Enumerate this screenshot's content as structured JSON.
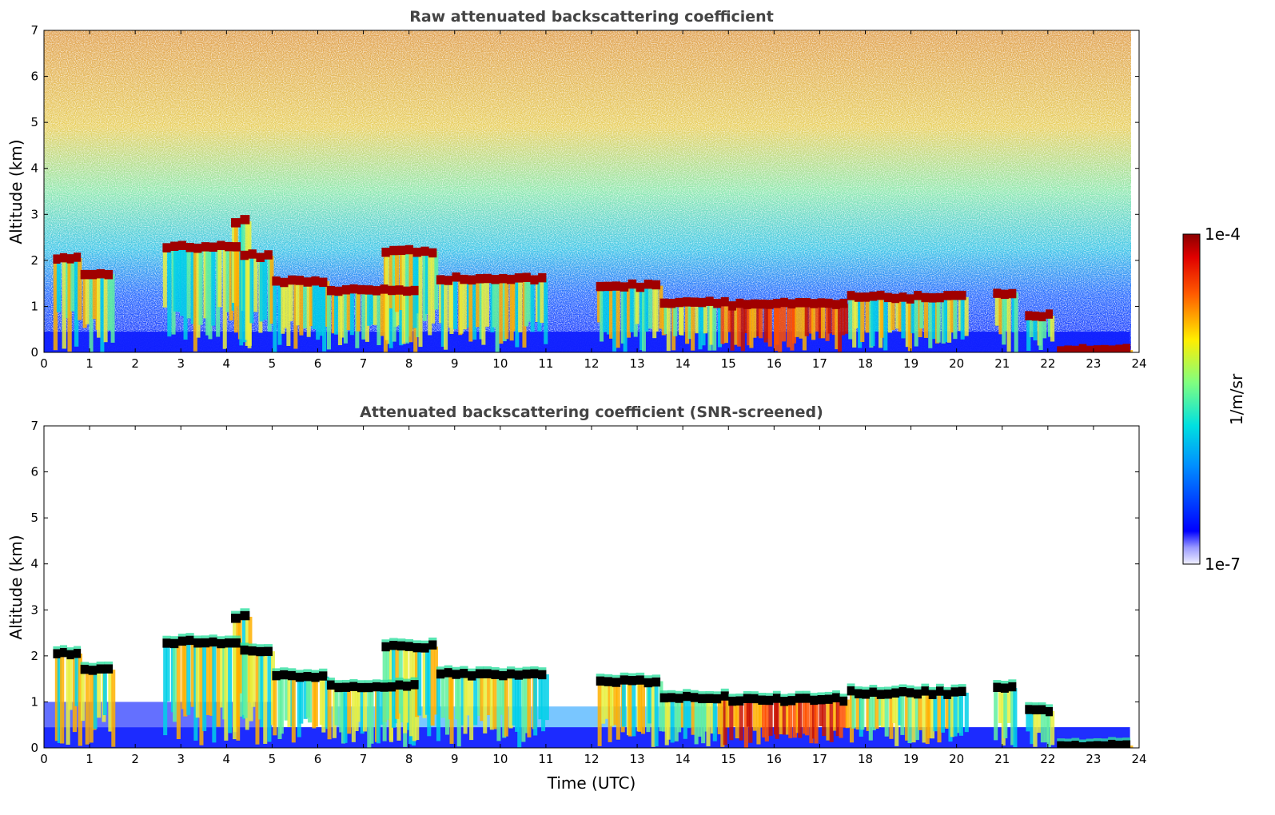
{
  "chart_data": [
    {
      "type": "heatmap",
      "title": "Raw attenuated backscattering coefficient",
      "xlabel": "",
      "ylabel": "Altitude (km)",
      "xlim": [
        0,
        24
      ],
      "ylim": [
        0,
        7
      ],
      "xticks": [
        "0",
        "1",
        "2",
        "3",
        "4",
        "5",
        "6",
        "7",
        "8",
        "9",
        "10",
        "11",
        "12",
        "13",
        "14",
        "15",
        "16",
        "17",
        "18",
        "19",
        "20",
        "21",
        "22",
        "23",
        "24"
      ],
      "yticks": [
        "0",
        "1",
        "2",
        "3",
        "4",
        "5",
        "6",
        "7"
      ],
      "screened": false,
      "cloud_base_km": [
        {
          "t0": 0.2,
          "t1": 0.8,
          "z": 2.05
        },
        {
          "t0": 0.8,
          "t1": 1.5,
          "z": 1.7
        },
        {
          "t0": 2.6,
          "t1": 4.3,
          "z": 2.3
        },
        {
          "t0": 4.1,
          "t1": 4.5,
          "z": 2.85
        },
        {
          "t0": 4.3,
          "t1": 5.0,
          "z": 2.1
        },
        {
          "t0": 5.0,
          "t1": 6.2,
          "z": 1.55
        },
        {
          "t0": 6.2,
          "t1": 8.2,
          "z": 1.35
        },
        {
          "t0": 7.4,
          "t1": 8.6,
          "z": 2.2
        },
        {
          "t0": 8.6,
          "t1": 11.0,
          "z": 1.6
        },
        {
          "t0": 12.1,
          "t1": 13.5,
          "z": 1.45
        },
        {
          "t0": 13.5,
          "t1": 15.0,
          "z": 1.1
        },
        {
          "t0": 15.0,
          "t1": 17.6,
          "z": 1.05
        },
        {
          "t0": 17.6,
          "t1": 20.2,
          "z": 1.2
        },
        {
          "t0": 20.8,
          "t1": 21.3,
          "z": 1.3
        },
        {
          "t0": 21.5,
          "t1": 22.1,
          "z": 0.8
        },
        {
          "t0": 22.2,
          "t1": 23.8,
          "z": 0.05
        }
      ]
    },
    {
      "type": "heatmap",
      "title": "Attenuated backscattering coefficient (SNR-screened)",
      "xlabel": "Time (UTC)",
      "ylabel": "Altitude (km)",
      "xlim": [
        0,
        24
      ],
      "ylim": [
        0,
        7
      ],
      "xticks": [
        "0",
        "1",
        "2",
        "3",
        "4",
        "5",
        "6",
        "7",
        "8",
        "9",
        "10",
        "11",
        "12",
        "13",
        "14",
        "15",
        "16",
        "17",
        "18",
        "19",
        "20",
        "21",
        "22",
        "23",
        "24"
      ],
      "yticks": [
        "0",
        "1",
        "2",
        "3",
        "4",
        "5",
        "6",
        "7"
      ],
      "screened": true
    }
  ],
  "colorbar": {
    "max_label": "1e-4",
    "min_label": "1e-7",
    "unit_label": "1/m/sr",
    "scale": "log",
    "colormap": [
      "#ffffff",
      "#1010ff",
      "#00c8ff",
      "#7fffb0",
      "#ffe600",
      "#ff6a00",
      "#8b0000"
    ]
  }
}
